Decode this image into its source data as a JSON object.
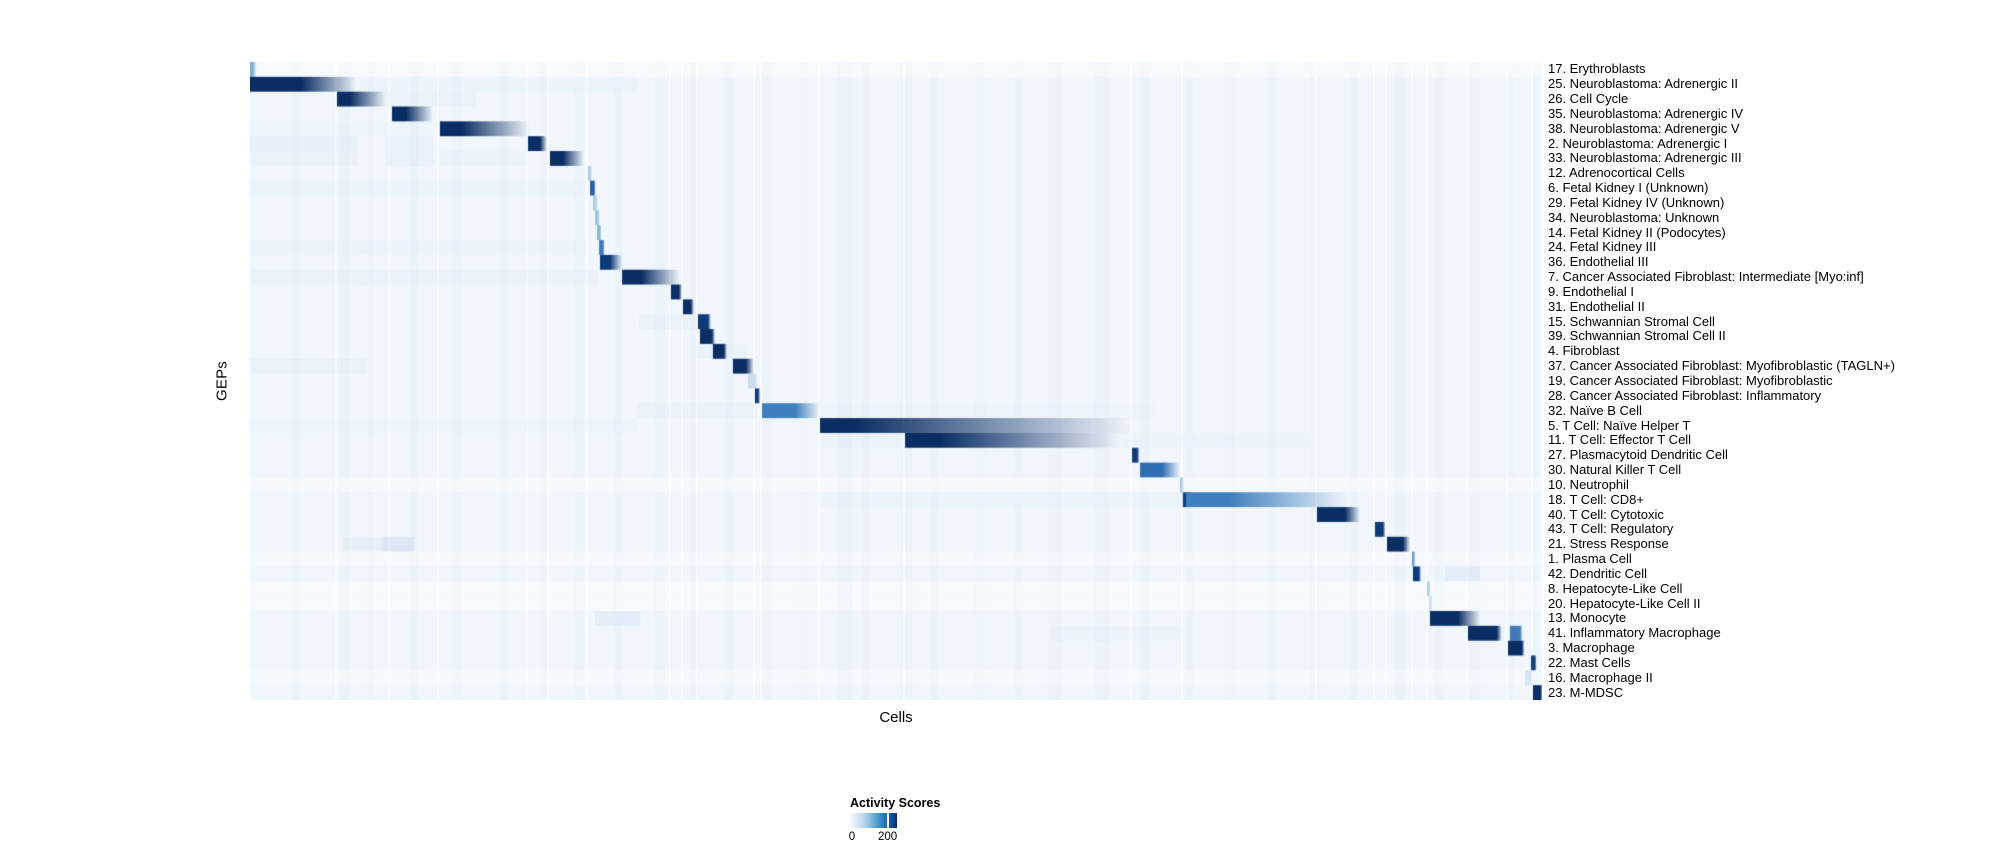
{
  "figure": {
    "y_axis_label": "GEPs",
    "x_axis_label": "Cells"
  },
  "legend": {
    "title": "Activity Scores",
    "min_label": "0",
    "max_label": "200",
    "tick_frac": 0.8,
    "colormap": [
      "#f7fbff",
      "#deebf7",
      "#c6dbef",
      "#9ecae1",
      "#6baed6",
      "#4292c6",
      "#2171b5",
      "#08519c",
      "#08306b"
    ]
  },
  "chart_data": {
    "type": "heatmap",
    "title": "",
    "xlabel": "Cells",
    "ylabel": "GEPs",
    "colorbar": {
      "label": "Activity Scores",
      "min": 0,
      "max": 200
    },
    "n_rows": 43,
    "background": "#f0f6fc",
    "band_color": "#b7cfe9",
    "gap_color": "#ffffff",
    "rows": [
      {
        "label": "17. Erythroblasts",
        "blocks": [
          {
            "s": 0.0,
            "e": 0.0023,
            "f": 0.005,
            "c": "#7fb0d8"
          }
        ],
        "wash": [
          {
            "s": 0,
            "e": 1,
            "a": 0.45,
            "c": "#ffffff"
          }
        ]
      },
      {
        "label": "25. Neuroblastoma: Adrenergic II",
        "blocks": [
          {
            "s": 0.0,
            "e": 0.0395,
            "f": 0.0828,
            "c": "#0a2d64"
          }
        ],
        "wash": [
          {
            "s": 0.085,
            "e": 0.3,
            "a": 0.05
          }
        ]
      },
      {
        "label": "26. Cell Cycle",
        "blocks": [
          {
            "s": 0.0673,
            "e": 0.0774,
            "f": 0.1053,
            "c": "#0a2d64"
          }
        ],
        "wash": [
          {
            "s": 0.106,
            "e": 0.175,
            "a": 0.1
          }
        ]
      },
      {
        "label": "35. Neuroblastoma: Adrenergic IV",
        "blocks": [
          {
            "s": 0.1099,
            "e": 0.1207,
            "f": 0.1416,
            "c": "#0a2d64"
          }
        ],
        "wash": []
      },
      {
        "label": "38. Neuroblastoma: Adrenergic V",
        "blocks": [
          {
            "s": 0.147,
            "e": 0.1641,
            "f": 0.2167,
            "c": "#0a2d64"
          }
        ],
        "wash": [
          {
            "s": 0.0,
            "e": 0.14,
            "a": 0.04
          }
        ]
      },
      {
        "label": "2. Neuroblastoma: Adrenergic I",
        "blocks": [
          {
            "s": 0.2152,
            "e": 0.2245,
            "f": 0.2299,
            "c": "#0a2d64"
          }
        ],
        "wash": [
          {
            "s": 0,
            "e": 0.083,
            "a": 0.15
          },
          {
            "s": 0.105,
            "e": 0.142,
            "a": 0.12
          }
        ]
      },
      {
        "label": "33. Neuroblastoma: Adrenergic III",
        "blocks": [
          {
            "s": 0.2322,
            "e": 0.2422,
            "f": 0.2585,
            "c": "#0a2d64"
          }
        ],
        "wash": [
          {
            "s": 0,
            "e": 0.083,
            "a": 0.1
          },
          {
            "s": 0.105,
            "e": 0.142,
            "a": 0.14
          },
          {
            "s": 0.147,
            "e": 0.215,
            "a": 0.06
          }
        ]
      },
      {
        "label": "12. Adrenocortical Cells",
        "blocks": [
          {
            "s": 0.2616,
            "e": 0.2632,
            "f": 0.2648,
            "c": "#aecde7"
          }
        ],
        "wash": []
      },
      {
        "label": "6. Fetal Kidney I (Unknown)",
        "blocks": [
          {
            "s": 0.2632,
            "e": 0.2663,
            "f": 0.2675,
            "c": "#2a5e9f"
          }
        ],
        "wash": [
          {
            "s": 0,
            "e": 0.26,
            "a": 0.05
          }
        ]
      },
      {
        "label": "29. Fetal Kidney IV (Unknown)",
        "blocks": [
          {
            "s": 0.2655,
            "e": 0.2678,
            "f": 0.269,
            "c": "#aecde7"
          }
        ],
        "wash": []
      },
      {
        "label": "34. Neuroblastoma: Unknown",
        "blocks": [
          {
            "s": 0.2671,
            "e": 0.2694,
            "f": 0.2706,
            "c": "#9cc2e2"
          }
        ],
        "wash": []
      },
      {
        "label": "14. Fetal Kidney II (Podocytes)",
        "blocks": [
          {
            "s": 0.2686,
            "e": 0.2709,
            "f": 0.2721,
            "c": "#8ab8dd"
          }
        ],
        "wash": []
      },
      {
        "label": "24. Fetal Kidney III",
        "blocks": [
          {
            "s": 0.2702,
            "e": 0.2733,
            "f": 0.2745,
            "c": "#4279b8"
          }
        ],
        "wash": [
          {
            "s": 0,
            "e": 0.26,
            "a": 0.06
          }
        ]
      },
      {
        "label": "36. Endothelial III",
        "blocks": [
          {
            "s": 0.2709,
            "e": 0.2787,
            "f": 0.288,
            "c": "#0d3a78"
          }
        ],
        "wash": []
      },
      {
        "label": "7. Cancer Associated Fibroblast: Intermediate [Myo:inf]",
        "blocks": [
          {
            "s": 0.288,
            "e": 0.3026,
            "f": 0.3328,
            "c": "#0a2d64"
          }
        ],
        "wash": [
          {
            "s": 0,
            "e": 0.27,
            "a": 0.09
          }
        ]
      },
      {
        "label": "9. Endothelial I",
        "blocks": [
          {
            "s": 0.3258,
            "e": 0.332,
            "f": 0.3344,
            "c": "#0a2d64"
          }
        ],
        "wash": []
      },
      {
        "label": "31. Endothelial II",
        "blocks": [
          {
            "s": 0.3351,
            "e": 0.3413,
            "f": 0.3436,
            "c": "#0a2d64"
          }
        ],
        "wash": []
      },
      {
        "label": "15. Schwannian Stromal Cell",
        "blocks": [
          {
            "s": 0.3467,
            "e": 0.3545,
            "f": 0.3568,
            "c": "#0d3a78"
          }
        ],
        "wash": [
          {
            "s": 0.301,
            "e": 0.345,
            "a": 0.1
          }
        ]
      },
      {
        "label": "39. Schwannian Stromal Cell II",
        "blocks": [
          {
            "s": 0.3483,
            "e": 0.3576,
            "f": 0.3599,
            "c": "#0a2d64"
          }
        ],
        "wash": []
      },
      {
        "label": "4. Fibroblast",
        "blocks": [
          {
            "s": 0.3583,
            "e": 0.3668,
            "f": 0.3691,
            "c": "#0a2d64"
          }
        ],
        "wash": [
          {
            "s": 0.345,
            "e": 0.384,
            "a": 0.13
          }
        ]
      },
      {
        "label": "37. Cancer Associated Fibroblast: Myofibroblastic (TAGLN+)",
        "blocks": [
          {
            "s": 0.3738,
            "e": 0.3839,
            "f": 0.3901,
            "c": "#0a2d64"
          }
        ],
        "wash": [
          {
            "s": 0,
            "e": 0.09,
            "a": 0.08
          }
        ]
      },
      {
        "label": "19. Cancer Associated Fibroblast: Myofibroblastic",
        "blocks": [
          {
            "s": 0.3854,
            "e": 0.3908,
            "f": 0.393,
            "c": "#cadded"
          }
        ],
        "wash": []
      },
      {
        "label": "28. Cancer Associated Fibroblast: Inflammatory",
        "blocks": [
          {
            "s": 0.3908,
            "e": 0.3932,
            "f": 0.395,
            "c": "#0d3a78"
          }
        ],
        "wash": []
      },
      {
        "label": "32. Naïve B Cell",
        "blocks": [
          {
            "s": 0.3963,
            "e": 0.4218,
            "f": 0.4412,
            "c": "#3f7fbe"
          }
        ],
        "wash": [
          {
            "s": 0.3,
            "e": 0.392,
            "a": 0.08
          },
          {
            "s": 0.442,
            "e": 0.7,
            "a": 0.045
          }
        ]
      },
      {
        "label": "5. T Cell: Naïve Helper T",
        "blocks": [
          {
            "s": 0.4412,
            "e": 0.4667,
            "f": 0.683,
            "c": "#0a2d64"
          }
        ],
        "wash": [
          {
            "s": 0,
            "e": 0.3,
            "a": 0.045
          }
        ]
      },
      {
        "label": "11. T Cell: Effector T Cell",
        "blocks": [
          {
            "s": 0.507,
            "e": 0.534,
            "f": 0.675,
            "c": "#0a2d64"
          }
        ],
        "wash": [
          {
            "s": 0.442,
            "e": 0.503,
            "a": 0.1
          },
          {
            "s": 0.675,
            "e": 0.82,
            "a": 0.05
          }
        ]
      },
      {
        "label": "27. Plasmacytoid Dendritic Cell",
        "blocks": [
          {
            "s": 0.6827,
            "e": 0.6866,
            "f": 0.6886,
            "c": "#0d3a78"
          }
        ],
        "wash": []
      },
      {
        "label": "30. Natural Killer T Cell",
        "blocks": [
          {
            "s": 0.6889,
            "e": 0.706,
            "f": 0.72,
            "c": "#2e6db4"
          }
        ],
        "wash": []
      },
      {
        "label": "10. Neutrophil",
        "blocks": [
          {
            "s": 0.7198,
            "e": 0.7214,
            "f": 0.7226,
            "c": "#aecde7"
          }
        ],
        "wash": [
          {
            "s": 0,
            "e": 1,
            "a": 0.35,
            "c": "#ffffff"
          }
        ]
      },
      {
        "label": "18. T Cell: CD8+",
        "blocks": [
          {
            "s": 0.722,
            "e": 0.7262,
            "f": 0.728,
            "c": "#14407e"
          },
          {
            "s": 0.7245,
            "e": 0.758,
            "f": 0.85,
            "c": "#3f7fbe"
          }
        ],
        "wash": [
          {
            "s": 0.44,
            "e": 0.72,
            "a": 0.05
          }
        ]
      },
      {
        "label": "40. T Cell: Cytotoxic",
        "blocks": [
          {
            "s": 0.8258,
            "e": 0.8475,
            "f": 0.8591,
            "c": "#0a2d64"
          }
        ],
        "wash": []
      },
      {
        "label": "43. T Cell: Regulatory",
        "blocks": [
          {
            "s": 0.8707,
            "e": 0.8769,
            "f": 0.8789,
            "c": "#0d3a78"
          }
        ],
        "wash": []
      },
      {
        "label": "21. Stress Response",
        "blocks": [
          {
            "s": 0.88,
            "e": 0.8924,
            "f": 0.8979,
            "c": "#0a2d64"
          }
        ],
        "wash": [
          {
            "s": 0.072,
            "e": 0.102,
            "a": 0.15
          },
          {
            "s": 0.102,
            "e": 0.127,
            "a": 0.35
          }
        ]
      },
      {
        "label": "1. Plasma Cell",
        "blocks": [
          {
            "s": 0.8993,
            "e": 0.9009,
            "f": 0.9021,
            "c": "#6ba3d6"
          }
        ],
        "wash": [
          {
            "s": 0,
            "e": 1,
            "a": 0.3,
            "c": "#ffffff"
          }
        ]
      },
      {
        "label": "42. Dendritic Cell",
        "blocks": [
          {
            "s": 0.9001,
            "e": 0.9048,
            "f": 0.9064,
            "c": "#0d3a78"
          }
        ],
        "wash": [
          {
            "s": 0.925,
            "e": 0.952,
            "a": 0.22
          }
        ]
      },
      {
        "label": "8. Hepatocyte-Like Cell",
        "blocks": [
          {
            "s": 0.911,
            "e": 0.9125,
            "f": 0.9137,
            "c": "#aecde7"
          }
        ],
        "wash": [
          {
            "s": 0,
            "e": 1,
            "a": 0.4,
            "c": "#ffffff"
          }
        ]
      },
      {
        "label": "20. Hepatocyte-Like Cell II",
        "blocks": [
          {
            "s": 0.9125,
            "e": 0.9141,
            "f": 0.9153,
            "c": "#cadded"
          }
        ],
        "wash": [
          {
            "s": 0,
            "e": 1,
            "a": 0.4,
            "c": "#ffffff"
          }
        ]
      },
      {
        "label": "13. Monocyte",
        "blocks": [
          {
            "s": 0.9133,
            "e": 0.935,
            "f": 0.952,
            "c": "#0a2d64"
          }
        ],
        "wash": [
          {
            "s": 0.267,
            "e": 0.302,
            "a": 0.18
          }
        ]
      },
      {
        "label": "41. Inflammatory Macrophage",
        "blocks": [
          {
            "s": 0.9427,
            "e": 0.9651,
            "f": 0.969,
            "c": "#0a2d64"
          },
          {
            "s": 0.9752,
            "e": 0.983,
            "f": 0.985,
            "c": "#4279b8"
          }
        ],
        "wash": [
          {
            "s": 0.62,
            "e": 0.72,
            "a": 0.06
          }
        ]
      },
      {
        "label": "3. Macrophage",
        "blocks": [
          {
            "s": 0.9737,
            "e": 0.9845,
            "f": 0.9865,
            "c": "#0a2d64"
          }
        ],
        "wash": []
      },
      {
        "label": "22. Mast Cells",
        "blocks": [
          {
            "s": 0.9915,
            "e": 0.9946,
            "f": 0.9958,
            "c": "#14407e"
          }
        ],
        "wash": []
      },
      {
        "label": "16. Macrophage II",
        "blocks": [
          {
            "s": 0.9869,
            "e": 0.9915,
            "f": 0.9927,
            "c": "#d6e5f4"
          }
        ],
        "wash": [
          {
            "s": 0,
            "e": 1,
            "a": 0.3,
            "c": "#ffffff"
          }
        ]
      },
      {
        "label": "23. M-MDSC",
        "blocks": [
          {
            "s": 0.993,
            "e": 0.9992,
            "f": 1.0,
            "c": "#0a2d64"
          }
        ],
        "wash": []
      }
    ],
    "bands": [
      {
        "x": 0.0325,
        "w": 0.0062,
        "a": 0.05
      },
      {
        "x": 0.0697,
        "w": 0.0077,
        "a": 0.05
      },
      {
        "x": 0.0913,
        "w": 0.0046,
        "a": 0.04
      },
      {
        "x": 0.1238,
        "w": 0.0062,
        "a": 0.05
      },
      {
        "x": 0.1563,
        "w": 0.0077,
        "a": 0.04
      },
      {
        "x": 0.1935,
        "w": 0.0062,
        "a": 0.05
      },
      {
        "x": 0.2245,
        "w": 0.0046,
        "a": 0.04
      },
      {
        "x": 0.2516,
        "w": 0.0062,
        "a": 0.05
      },
      {
        "x": 0.2825,
        "w": 0.0062,
        "a": 0.06
      },
      {
        "x": 0.3135,
        "w": 0.0077,
        "a": 0.05
      },
      {
        "x": 0.3406,
        "w": 0.0062,
        "a": 0.06
      },
      {
        "x": 0.3676,
        "w": 0.0062,
        "a": 0.05
      },
      {
        "x": 0.3963,
        "w": 0.0077,
        "a": 0.06
      },
      {
        "x": 0.4257,
        "w": 0.0062,
        "a": 0.04
      },
      {
        "x": 0.4551,
        "w": 0.0108,
        "a": 0.1
      },
      {
        "x": 0.4737,
        "w": 0.0062,
        "a": 0.06
      },
      {
        "x": 0.5031,
        "w": 0.0093,
        "a": 0.07
      },
      {
        "x": 0.5263,
        "w": 0.0062,
        "a": 0.05
      },
      {
        "x": 0.5611,
        "w": 0.0077,
        "a": 0.04
      },
      {
        "x": 0.5921,
        "w": 0.0062,
        "a": 0.05
      },
      {
        "x": 0.6176,
        "w": 0.0108,
        "a": 0.06
      },
      {
        "x": 0.654,
        "w": 0.0108,
        "a": 0.06
      },
      {
        "x": 0.6889,
        "w": 0.0077,
        "a": 0.05
      },
      {
        "x": 0.7237,
        "w": 0.0062,
        "a": 0.05
      },
      {
        "x": 0.7546,
        "w": 0.0077,
        "a": 0.04
      },
      {
        "x": 0.7879,
        "w": 0.0062,
        "a": 0.05
      },
      {
        "x": 0.8204,
        "w": 0.0077,
        "a": 0.05
      },
      {
        "x": 0.8514,
        "w": 0.0062,
        "a": 0.05
      },
      {
        "x": 0.8862,
        "w": 0.0077,
        "a": 0.06
      },
      {
        "x": 0.9172,
        "w": 0.0062,
        "a": 0.05
      },
      {
        "x": 0.9443,
        "w": 0.0077,
        "a": 0.06
      },
      {
        "x": 0.9714,
        "w": 0.0062,
        "a": 0.05
      },
      {
        "x": 0.9907,
        "w": 0.0062,
        "a": 0.05
      }
    ],
    "gaps": [
      0.0658,
      0.1068,
      0.1447,
      0.2136,
      0.2299,
      0.2601,
      0.3243,
      0.3336,
      0.3452,
      0.3893,
      0.3947,
      0.4396,
      0.5054,
      0.6811,
      0.7206,
      0.8243,
      0.8692,
      0.8785,
      0.8986,
      0.9102,
      0.9412,
      0.9721,
      0.9915
    ]
  }
}
